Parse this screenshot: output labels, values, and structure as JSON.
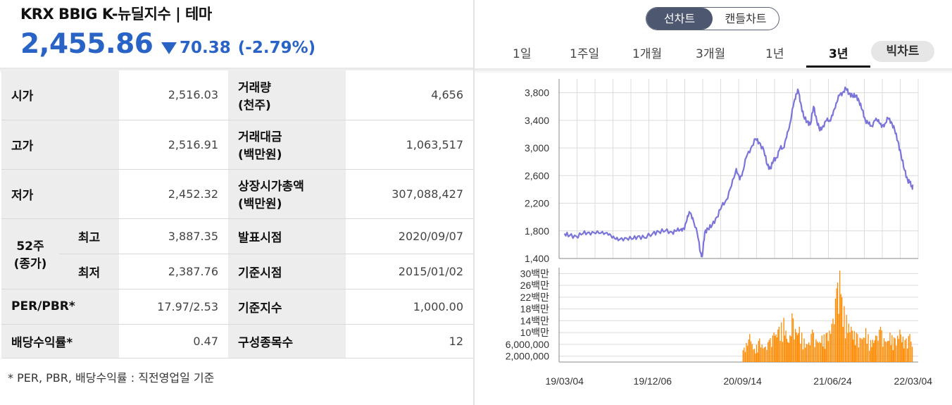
{
  "header": {
    "title": "KRX BBIG K-뉴딜지수 | 테마",
    "price": "2,455.86",
    "change": "70.38",
    "change_pct": "(-2.79%)",
    "direction": "down",
    "color": "#2a63c6"
  },
  "stats": {
    "open_label": "시가",
    "open_value": "2,516.03",
    "volume_label_1": "거래량",
    "volume_label_2": "(천주)",
    "volume_value": "4,656",
    "high_label": "고가",
    "high_value": "2,516.91",
    "amount_label_1": "거래대금",
    "amount_label_2": "(백만원)",
    "amount_value": "1,063,517",
    "low_label": "저가",
    "low_value": "2,452.32",
    "mcap_label_1": "상장시가총액",
    "mcap_label_2": "(백만원)",
    "mcap_value": "307,088,427",
    "w52_label_1": "52주",
    "w52_label_2": "(종가)",
    "w52_high_label": "최고",
    "w52_high_value": "3,887.35",
    "w52_low_label": "최저",
    "w52_low_value": "2,387.76",
    "announce_label": "발표시점",
    "announce_value": "2020/09/07",
    "base_date_label": "기준시점",
    "base_date_value": "2015/01/02",
    "per_pbr_label": "PER/PBR*",
    "per_pbr_value": "17.97/2.53",
    "base_index_label": "기준지수",
    "base_index_value": "1,000.00",
    "dividend_label": "배당수익률*",
    "dividend_value": "0.47",
    "components_label": "구성종목수",
    "components_value": "12"
  },
  "note": "* PER, PBR, 배당수익률 : 직전영업일 기준",
  "chart_controls": {
    "line_chart": "선차트",
    "candle_chart": "캔들차트",
    "periods": [
      "1일",
      "1주일",
      "1개월",
      "3개월",
      "1년",
      "3년"
    ],
    "active_period": "3년",
    "big_chart": "빅차트"
  },
  "chart_data": [
    {
      "type": "line",
      "title": "",
      "color": "#7b74d9",
      "ylim": [
        1400,
        4000
      ],
      "y_ticks": [
        "1,400",
        "1,800",
        "2,200",
        "2,600",
        "3,000",
        "3,400",
        "3,800"
      ],
      "x_tick_labels": [
        "19/03/04",
        "19/12/06",
        "20/09/14",
        "21/06/24",
        "22/03/04"
      ],
      "series": [
        {
          "values": [
            [
              "2019-03-04",
              1760
            ],
            [
              "2019-03-20",
              1730
            ],
            [
              "2019-04-10",
              1720
            ],
            [
              "2019-05-01",
              1760
            ],
            [
              "2019-05-20",
              1780
            ],
            [
              "2019-06-10",
              1760
            ],
            [
              "2019-07-01",
              1790
            ],
            [
              "2019-07-20",
              1740
            ],
            [
              "2019-08-05",
              1720
            ],
            [
              "2019-08-20",
              1660
            ],
            [
              "2019-09-10",
              1700
            ],
            [
              "2019-10-01",
              1680
            ],
            [
              "2019-10-20",
              1720
            ],
            [
              "2019-11-10",
              1700
            ],
            [
              "2019-12-06",
              1760
            ],
            [
              "2019-12-25",
              1790
            ],
            [
              "2020-01-15",
              1800
            ],
            [
              "2020-02-05",
              1780
            ],
            [
              "2020-02-20",
              1800
            ],
            [
              "2020-03-05",
              1830
            ],
            [
              "2020-03-15",
              1820
            ],
            [
              "2020-03-25",
              2020
            ],
            [
              "2020-04-01",
              2060
            ],
            [
              "2020-04-10",
              1990
            ],
            [
              "2020-04-25",
              1750
            ],
            [
              "2020-05-05",
              1480
            ],
            [
              "2020-05-10",
              1430
            ],
            [
              "2020-05-18",
              1780
            ],
            [
              "2020-05-28",
              1830
            ],
            [
              "2020-06-10",
              1880
            ],
            [
              "2020-06-25",
              2000
            ],
            [
              "2020-07-10",
              2150
            ],
            [
              "2020-07-25",
              2250
            ],
            [
              "2020-08-10",
              2450
            ],
            [
              "2020-08-25",
              2700
            ],
            [
              "2020-09-05",
              2540
            ],
            [
              "2020-09-14",
              2650
            ],
            [
              "2020-09-25",
              2860
            ],
            [
              "2020-10-10",
              3000
            ],
            [
              "2020-10-25",
              3130
            ],
            [
              "2020-11-05",
              3080
            ],
            [
              "2020-11-20",
              2960
            ],
            [
              "2020-12-01",
              2750
            ],
            [
              "2020-12-10",
              2700
            ],
            [
              "2020-12-20",
              2820
            ],
            [
              "2020-12-30",
              2860
            ],
            [
              "2021-01-10",
              3000
            ],
            [
              "2021-01-20",
              3000
            ],
            [
              "2021-01-30",
              3150
            ],
            [
              "2021-02-10",
              3360
            ],
            [
              "2021-02-20",
              3600
            ],
            [
              "2021-03-01",
              3780
            ],
            [
              "2021-03-08",
              3830
            ],
            [
              "2021-03-15",
              3660
            ],
            [
              "2021-03-25",
              3450
            ],
            [
              "2021-04-05",
              3380
            ],
            [
              "2021-04-15",
              3340
            ],
            [
              "2021-04-25",
              3600
            ],
            [
              "2021-05-05",
              3400
            ],
            [
              "2021-05-15",
              3250
            ],
            [
              "2021-05-25",
              3320
            ],
            [
              "2021-06-05",
              3400
            ],
            [
              "2021-06-15",
              3400
            ],
            [
              "2021-06-24",
              3470
            ],
            [
              "2021-07-05",
              3650
            ],
            [
              "2021-07-15",
              3760
            ],
            [
              "2021-07-25",
              3800
            ],
            [
              "2021-08-05",
              3860
            ],
            [
              "2021-08-15",
              3790
            ],
            [
              "2021-08-25",
              3750
            ],
            [
              "2021-09-05",
              3760
            ],
            [
              "2021-09-15",
              3680
            ],
            [
              "2021-09-25",
              3550
            ],
            [
              "2021-10-05",
              3400
            ],
            [
              "2021-10-15",
              3350
            ],
            [
              "2021-10-25",
              3320
            ],
            [
              "2021-11-05",
              3400
            ],
            [
              "2021-11-15",
              3410
            ],
            [
              "2021-11-25",
              3300
            ],
            [
              "2021-12-05",
              3350
            ],
            [
              "2021-12-15",
              3430
            ],
            [
              "2021-12-25",
              3380
            ],
            [
              "2022-01-05",
              3260
            ],
            [
              "2022-01-15",
              3100
            ],
            [
              "2022-01-25",
              2900
            ],
            [
              "2022-02-05",
              2680
            ],
            [
              "2022-02-15",
              2530
            ],
            [
              "2022-02-22",
              2500
            ],
            [
              "2022-03-01",
              2430
            ],
            [
              "2022-03-04",
              2456
            ]
          ]
        }
      ]
    },
    {
      "type": "bar",
      "title": "",
      "color": "#ff8a00",
      "y_tick_labels": [
        "30백만",
        "26백만",
        "22백만",
        "18백만",
        "14백만",
        "10백만",
        "6,000,000",
        "2,000,000"
      ],
      "ylim": [
        0,
        32000000
      ],
      "series": [
        {
          "values": [
            [
              "2020-09-14",
              4000000
            ],
            [
              "2020-10-05",
              9500000
            ],
            [
              "2020-10-20",
              4500000
            ],
            [
              "2020-11-05",
              8000000
            ],
            [
              "2020-11-20",
              5000000
            ],
            [
              "2020-12-05",
              7500000
            ],
            [
              "2020-12-20",
              10000000
            ],
            [
              "2021-01-05",
              12000000
            ],
            [
              "2021-01-20",
              15000000
            ],
            [
              "2021-02-05",
              6500000
            ],
            [
              "2021-02-15",
              16500000
            ],
            [
              "2021-03-01",
              10000000
            ],
            [
              "2021-03-10",
              12000000
            ],
            [
              "2021-03-25",
              8000000
            ],
            [
              "2021-04-05",
              6000000
            ],
            [
              "2021-04-20",
              11000000
            ],
            [
              "2021-05-05",
              7000000
            ],
            [
              "2021-05-20",
              9000000
            ],
            [
              "2021-06-05",
              10000000
            ],
            [
              "2021-06-20",
              13000000
            ],
            [
              "2021-07-05",
              25000000
            ],
            [
              "2021-07-15",
              31000000
            ],
            [
              "2021-07-22",
              22000000
            ],
            [
              "2021-08-05",
              16000000
            ],
            [
              "2021-08-20",
              12000000
            ],
            [
              "2021-09-05",
              10000000
            ],
            [
              "2021-09-20",
              8000000
            ],
            [
              "2021-10-05",
              11500000
            ],
            [
              "2021-10-20",
              7500000
            ],
            [
              "2021-11-05",
              9000000
            ],
            [
              "2021-11-20",
              12000000
            ],
            [
              "2021-12-05",
              7000000
            ],
            [
              "2021-12-20",
              10000000
            ],
            [
              "2022-01-05",
              8000000
            ],
            [
              "2022-01-20",
              11000000
            ],
            [
              "2022-02-05",
              7500000
            ],
            [
              "2022-02-20",
              9500000
            ],
            [
              "2022-03-04",
              4500000
            ]
          ]
        }
      ]
    }
  ]
}
